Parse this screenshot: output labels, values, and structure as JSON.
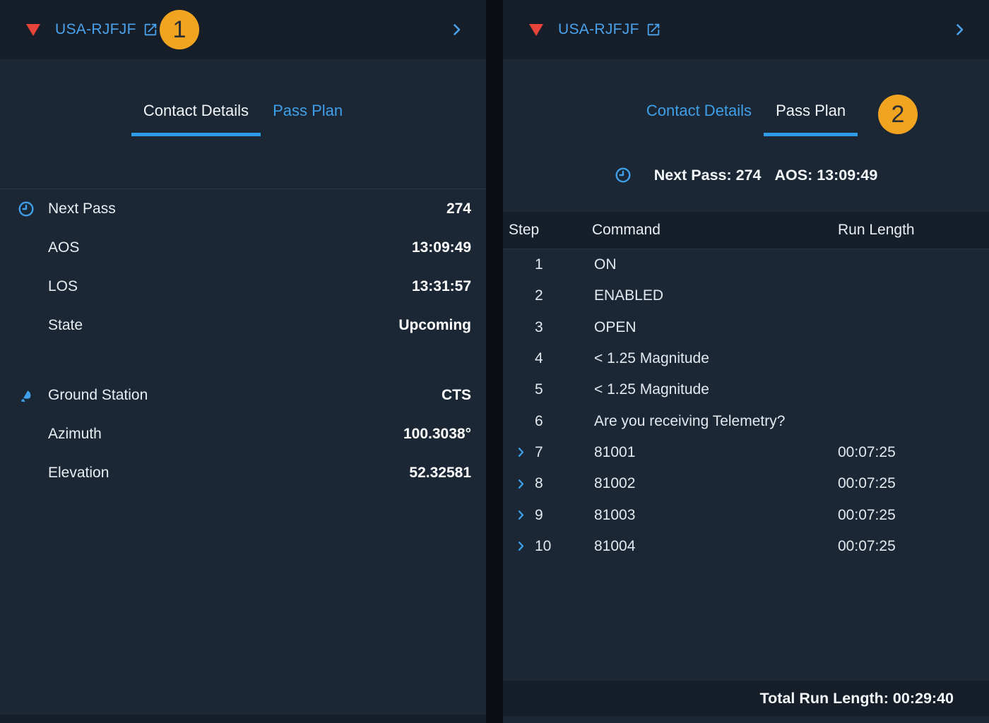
{
  "colors": {
    "accent_blue": "#3f9fe8",
    "alert_red": "#e8443c",
    "badge_orange": "#f0a41f",
    "tab_underline": "#2f9ce9",
    "header_band": "#151e29",
    "panel_background": "#1b2734"
  },
  "annotations": {
    "marker_1": "1",
    "marker_2": "2"
  },
  "left_panel": {
    "header": {
      "satellite_name": "USA-RJFJF",
      "alert_icon": "red-triangle-icon",
      "link_icon": "external-link-icon",
      "expand_icon": "chevron-right-icon"
    },
    "tabs": [
      {
        "label": "Contact Details",
        "active": true
      },
      {
        "label": "Pass Plan",
        "active": false
      }
    ],
    "sections": [
      {
        "icon": "clock-icon",
        "rows": [
          {
            "label": "Next Pass",
            "value": "274"
          },
          {
            "label": "AOS",
            "value": "13:09:49"
          },
          {
            "label": "LOS",
            "value": "13:31:57"
          },
          {
            "label": "State",
            "value": "Upcoming"
          }
        ]
      },
      {
        "icon": "dish-icon",
        "rows": [
          {
            "label": "Ground Station",
            "value": "CTS"
          },
          {
            "label": "Azimuth",
            "value": "100.3038°"
          },
          {
            "label": "Elevation",
            "value": "52.32581"
          }
        ]
      }
    ]
  },
  "right_panel": {
    "header": {
      "satellite_name": "USA-RJFJF",
      "alert_icon": "red-triangle-icon",
      "link_icon": "external-link-icon",
      "expand_icon": "chevron-right-icon"
    },
    "tabs": [
      {
        "label": "Contact Details",
        "active": false
      },
      {
        "label": "Pass Plan",
        "active": true
      }
    ],
    "summary": {
      "icon": "clock-icon",
      "next_pass": "Next Pass: 274",
      "aos": "AOS: 13:09:49"
    },
    "pass_plan_table": {
      "columns": [
        "Step",
        "Command",
        "Run Length"
      ],
      "rows": [
        {
          "step": "1",
          "command": "ON",
          "run_length": "",
          "expandable": false
        },
        {
          "step": "2",
          "command": "ENABLED",
          "run_length": "",
          "expandable": false
        },
        {
          "step": "3",
          "command": "OPEN",
          "run_length": "",
          "expandable": false
        },
        {
          "step": "4",
          "command": "< 1.25 Magnitude",
          "run_length": "",
          "expandable": false
        },
        {
          "step": "5",
          "command": "< 1.25 Magnitude",
          "run_length": "",
          "expandable": false
        },
        {
          "step": "6",
          "command": "Are you receiving Telemetry?",
          "run_length": "",
          "expandable": false
        },
        {
          "step": "7",
          "command": "81001",
          "run_length": "00:07:25",
          "expandable": true
        },
        {
          "step": "8",
          "command": "81002",
          "run_length": "00:07:25",
          "expandable": true
        },
        {
          "step": "9",
          "command": "81003",
          "run_length": "00:07:25",
          "expandable": true
        },
        {
          "step": "10",
          "command": "81004",
          "run_length": "00:07:25",
          "expandable": true
        }
      ],
      "total_label": "Total Run Length: 00:29:40"
    }
  }
}
